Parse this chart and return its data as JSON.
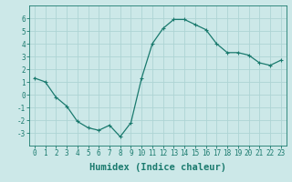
{
  "x": [
    0,
    1,
    2,
    3,
    4,
    5,
    6,
    7,
    8,
    9,
    10,
    11,
    12,
    13,
    14,
    15,
    16,
    17,
    18,
    19,
    20,
    21,
    22,
    23
  ],
  "y": [
    1.3,
    1.0,
    -0.2,
    -0.9,
    -2.1,
    -2.6,
    -2.8,
    -2.4,
    -3.3,
    -2.2,
    1.3,
    4.0,
    5.2,
    5.9,
    5.9,
    5.5,
    5.1,
    4.0,
    3.3,
    3.3,
    3.1,
    2.5,
    2.3,
    2.7
  ],
  "line_color": "#1a7a6e",
  "marker": "+",
  "marker_size": 3,
  "marker_lw": 0.8,
  "line_width": 0.9,
  "bg_color": "#cce8e8",
  "grid_color": "#aed4d4",
  "xlabel": "Humidex (Indice chaleur)",
  "ylim": [
    -4,
    7
  ],
  "xlim": [
    -0.5,
    23.5
  ],
  "yticks": [
    -3,
    -2,
    -1,
    0,
    1,
    2,
    3,
    4,
    5,
    6
  ],
  "xticks": [
    0,
    1,
    2,
    3,
    4,
    5,
    6,
    7,
    8,
    9,
    10,
    11,
    12,
    13,
    14,
    15,
    16,
    17,
    18,
    19,
    20,
    21,
    22,
    23
  ],
  "tick_fontsize": 5.5,
  "xlabel_fontsize": 7.5
}
